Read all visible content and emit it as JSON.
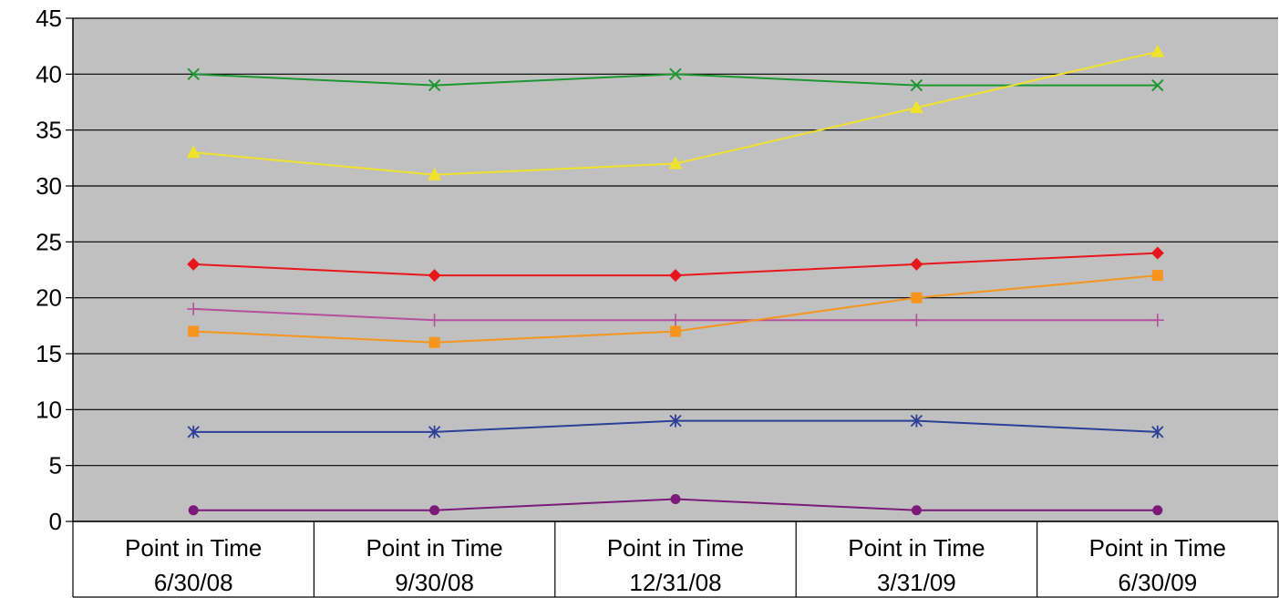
{
  "chart_data": {
    "type": "line",
    "title": "",
    "xlabel": "",
    "ylabel": "",
    "ylim": [
      0,
      45
    ],
    "yticks": [
      0,
      5,
      10,
      15,
      20,
      25,
      30,
      35,
      40,
      45
    ],
    "grid": true,
    "legend": "none",
    "plot_background": "#c0c0c0",
    "categories": [
      [
        "Point in Time",
        "6/30/08"
      ],
      [
        "Point in Time",
        "9/30/08"
      ],
      [
        "Point in Time",
        "12/31/08"
      ],
      [
        "Point in Time",
        "3/31/09"
      ],
      [
        "Point in Time",
        "6/30/09"
      ]
    ],
    "series": [
      {
        "color": "#1e9632",
        "marker": "x",
        "values": [
          40,
          39,
          40,
          39,
          39
        ]
      },
      {
        "color": "#f0e22c",
        "marker": "triangle",
        "values": [
          33,
          31,
          32,
          37,
          42
        ]
      },
      {
        "color": "#e8161c",
        "marker": "diamond",
        "values": [
          23,
          22,
          22,
          23,
          24
        ]
      },
      {
        "color": "#b4509e",
        "marker": "plus",
        "values": [
          19,
          18,
          18,
          18,
          18
        ]
      },
      {
        "color": "#f7941d",
        "marker": "square",
        "values": [
          17,
          16,
          17,
          20,
          22
        ]
      },
      {
        "color": "#2b3f97",
        "marker": "asterisk",
        "values": [
          8,
          8,
          9,
          9,
          8
        ]
      },
      {
        "color": "#7b1a7a",
        "marker": "circle",
        "values": [
          1,
          1,
          2,
          1,
          1
        ]
      }
    ]
  }
}
